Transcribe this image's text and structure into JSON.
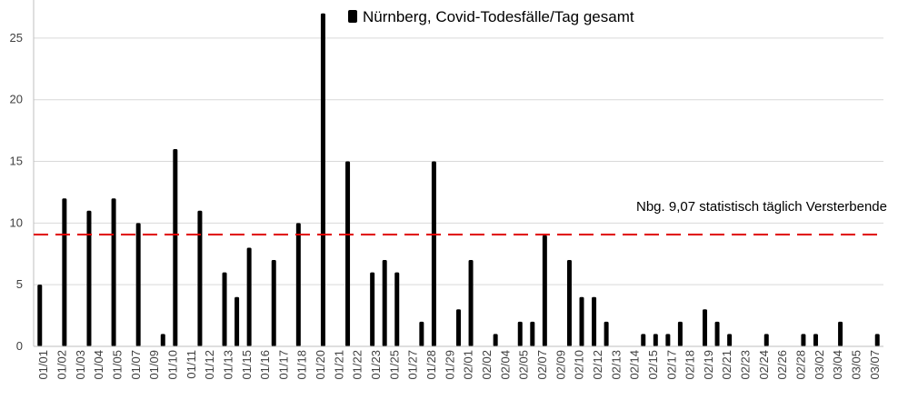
{
  "chart_data": {
    "type": "bar",
    "legend": "Nürnberg, Covid-Todesfälle/Tag gesamt",
    "legend_position": "top-right",
    "reference_line": {
      "value": 9.07,
      "label": "Nbg. 9,07 statistisch  täglich Versterbende",
      "color": "#e00000"
    },
    "ylim": [
      0,
      27.5
    ],
    "yticks": [
      0,
      5,
      10,
      15,
      20,
      25
    ],
    "grid": true,
    "bar_color": "#000000",
    "x_tick_labels": [
      "01/01",
      "01/02",
      "01/03",
      "01/04",
      "01/05",
      "01/07",
      "01/09",
      "01/10",
      "01/11",
      "01/12",
      "01/13",
      "01/15",
      "01/16",
      "01/17",
      "01/18",
      "01/20",
      "01/21",
      "01/22",
      "01/23",
      "01/25",
      "01/27",
      "01/28",
      "01/29",
      "02/01",
      "02/02",
      "02/04",
      "02/05",
      "02/07",
      "02/09",
      "02/10",
      "02/12",
      "02/13",
      "02/14",
      "02/15",
      "02/17",
      "02/18",
      "02/19",
      "02/21",
      "02/23",
      "02/24",
      "02/26",
      "02/28",
      "03/02",
      "03/04",
      "03/05",
      "03/07"
    ],
    "x_range": [
      0,
      69
    ],
    "x": [
      0,
      1,
      2,
      3,
      4,
      5,
      6,
      7,
      8,
      9,
      10,
      11,
      12,
      13,
      14,
      15,
      16,
      17,
      18,
      19,
      20,
      21,
      22,
      23,
      24,
      25,
      26,
      27,
      28,
      29,
      30,
      31,
      32,
      33,
      34,
      35,
      36,
      37,
      38,
      39,
      40,
      41,
      42,
      43,
      44,
      45,
      46,
      47,
      48,
      49,
      50,
      51,
      52,
      53,
      54,
      55,
      56,
      57,
      58,
      59,
      60,
      61,
      62,
      63,
      64,
      65,
      66,
      67,
      68
    ],
    "values": [
      5,
      0,
      12,
      0,
      11,
      0,
      12,
      0,
      10,
      0,
      1,
      16,
      0,
      11,
      0,
      6,
      4,
      8,
      0,
      7,
      0,
      10,
      0,
      27,
      0,
      15,
      0,
      6,
      7,
      6,
      0,
      2,
      15,
      0,
      3,
      7,
      0,
      1,
      0,
      2,
      2,
      9,
      0,
      7,
      4,
      4,
      2,
      0,
      0,
      1,
      1,
      1,
      2,
      0,
      3,
      2,
      1,
      0,
      0,
      1,
      0,
      0,
      1,
      1,
      0,
      2,
      0,
      0,
      1
    ]
  }
}
